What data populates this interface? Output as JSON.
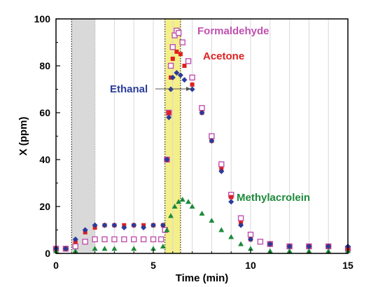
{
  "chart_data": {
    "type": "scatter",
    "title": "",
    "xlabel": "Time (min)",
    "ylabel": "X (ppm)",
    "xlim": [
      0,
      15
    ],
    "ylim": [
      0,
      100
    ],
    "x_ticks": [
      0,
      5,
      10,
      15
    ],
    "y_ticks": [
      0,
      20,
      40,
      60,
      80,
      100
    ],
    "x_tick_labels": [
      "0",
      "5",
      "10",
      "15"
    ],
    "y_tick_labels": [
      "0",
      "20",
      "40",
      "60",
      "80",
      "100"
    ],
    "grid": "vertical-only",
    "shaded_regions": [
      {
        "x_start": 0.8,
        "x_end": 2.0,
        "color": "#d9d9d9"
      },
      {
        "x_start": 5.6,
        "x_end": 6.4,
        "color": "#f5ef8a"
      }
    ],
    "series": [
      {
        "name": "Formaldehyde",
        "color": "#c050b0",
        "marker": "open-square",
        "values": [
          [
            0,
            2
          ],
          [
            0.5,
            2
          ],
          [
            1,
            3
          ],
          [
            1.5,
            5
          ],
          [
            2,
            6
          ],
          [
            2.5,
            6
          ],
          [
            3,
            6
          ],
          [
            3.5,
            6
          ],
          [
            4,
            6
          ],
          [
            4.5,
            6
          ],
          [
            5,
            6
          ],
          [
            5.4,
            6
          ],
          [
            5.6,
            10
          ],
          [
            5.7,
            40
          ],
          [
            5.8,
            60
          ],
          [
            5.9,
            80
          ],
          [
            6,
            88
          ],
          [
            6.1,
            93
          ],
          [
            6.2,
            95
          ],
          [
            6.3,
            94
          ],
          [
            6.5,
            90
          ],
          [
            6.8,
            82
          ],
          [
            7,
            75
          ],
          [
            7.5,
            62
          ],
          [
            8,
            50
          ],
          [
            8.5,
            38
          ],
          [
            9,
            25
          ],
          [
            9.5,
            15
          ],
          [
            10,
            8
          ],
          [
            10.5,
            5
          ],
          [
            11,
            4
          ],
          [
            12,
            3
          ],
          [
            13,
            3
          ],
          [
            14,
            3
          ],
          [
            15,
            2
          ]
        ]
      },
      {
        "name": "Acetone",
        "color": "#e02020",
        "marker": "filled-square",
        "values": [
          [
            0,
            2
          ],
          [
            0.5,
            2
          ],
          [
            1,
            5
          ],
          [
            1.5,
            9
          ],
          [
            2,
            11
          ],
          [
            2.5,
            12
          ],
          [
            3,
            12
          ],
          [
            3.5,
            12
          ],
          [
            4,
            12
          ],
          [
            4.5,
            12
          ],
          [
            5,
            12
          ],
          [
            5.5,
            12
          ],
          [
            5.7,
            40
          ],
          [
            5.8,
            60
          ],
          [
            5.9,
            75
          ],
          [
            6,
            83
          ],
          [
            6.2,
            86
          ],
          [
            6.4,
            85
          ],
          [
            6.6,
            80
          ],
          [
            7,
            72
          ],
          [
            7.5,
            60
          ],
          [
            8,
            48
          ],
          [
            8.5,
            36
          ],
          [
            9,
            24
          ],
          [
            9.5,
            13
          ],
          [
            10,
            6
          ],
          [
            11,
            4
          ],
          [
            12,
            3
          ],
          [
            13,
            3
          ],
          [
            14,
            3
          ],
          [
            15,
            2
          ]
        ]
      },
      {
        "name": "Ethanal",
        "color": "#2a3c9a",
        "marker": "filled-diamond",
        "values": [
          [
            0,
            2
          ],
          [
            0.5,
            2
          ],
          [
            1,
            6
          ],
          [
            1.5,
            10
          ],
          [
            2,
            12
          ],
          [
            2.5,
            12
          ],
          [
            3,
            12
          ],
          [
            3.5,
            11
          ],
          [
            4,
            12
          ],
          [
            4.5,
            11
          ],
          [
            5,
            12
          ],
          [
            5.5,
            12
          ],
          [
            5.7,
            40
          ],
          [
            5.8,
            58
          ],
          [
            5.9,
            70
          ],
          [
            6,
            75
          ],
          [
            6.2,
            77
          ],
          [
            6.4,
            76
          ],
          [
            6.6,
            74
          ],
          [
            7,
            70
          ],
          [
            7.5,
            60
          ],
          [
            8,
            48
          ],
          [
            8.5,
            35
          ],
          [
            9,
            22
          ],
          [
            9.5,
            12
          ],
          [
            10,
            6
          ],
          [
            11,
            4
          ],
          [
            12,
            3
          ],
          [
            13,
            3
          ],
          [
            14,
            3
          ],
          [
            15,
            3
          ]
        ]
      },
      {
        "name": "Methylacrolein",
        "color": "#1d8a3a",
        "marker": "filled-triangle",
        "values": [
          [
            0,
            1
          ],
          [
            1,
            1
          ],
          [
            2,
            2
          ],
          [
            2.5,
            2
          ],
          [
            3,
            2
          ],
          [
            4,
            2
          ],
          [
            5,
            2
          ],
          [
            5.5,
            3
          ],
          [
            5.7,
            10
          ],
          [
            5.9,
            16
          ],
          [
            6.1,
            20
          ],
          [
            6.3,
            22
          ],
          [
            6.5,
            23
          ],
          [
            6.8,
            22
          ],
          [
            7,
            20
          ],
          [
            7.5,
            17
          ],
          [
            8,
            14
          ],
          [
            8.5,
            10
          ],
          [
            9,
            7
          ],
          [
            9.5,
            4
          ],
          [
            10,
            2
          ],
          [
            11,
            1
          ],
          [
            12,
            1
          ],
          [
            13,
            1
          ],
          [
            14,
            1
          ],
          [
            15,
            1
          ]
        ]
      }
    ]
  }
}
